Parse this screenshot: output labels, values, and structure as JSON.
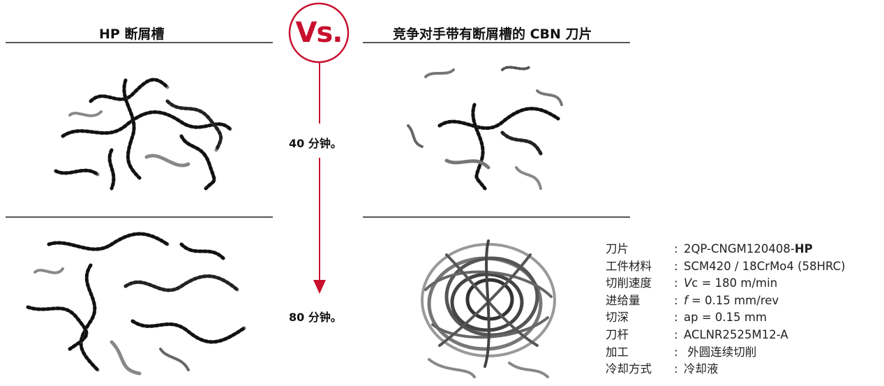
{
  "left_title": "HP 断屑槽",
  "right_title": "竞争对手带有断屑槽的 CBN 刀片",
  "vs_label": "Vs.",
  "times": [
    "40 分钟。",
    "80 分钟。"
  ],
  "accent_color": "#c8102e",
  "specs": [
    {
      "label": "刀片",
      "value_pre": "2QP-CNGM120408-",
      "value_bold": "HP"
    },
    {
      "label": "工件材料",
      "value": "SCM420 / 18CrMo4 (58HRC)"
    },
    {
      "label": "切削速度",
      "value_italic": "V",
      "value_rest": "c = 180 m/min"
    },
    {
      "label": "进给量",
      "value_italic": "f",
      "value_rest": " = 0.15 mm/rev"
    },
    {
      "label": "切深",
      "value": "ap = 0.15 mm"
    },
    {
      "label": "刀杆",
      "value": "ACLNR2525M12-A"
    },
    {
      "label": "加工",
      "value": " 外圆连续切削"
    },
    {
      "label": "冷却方式",
      "value": "冷却液"
    }
  ]
}
